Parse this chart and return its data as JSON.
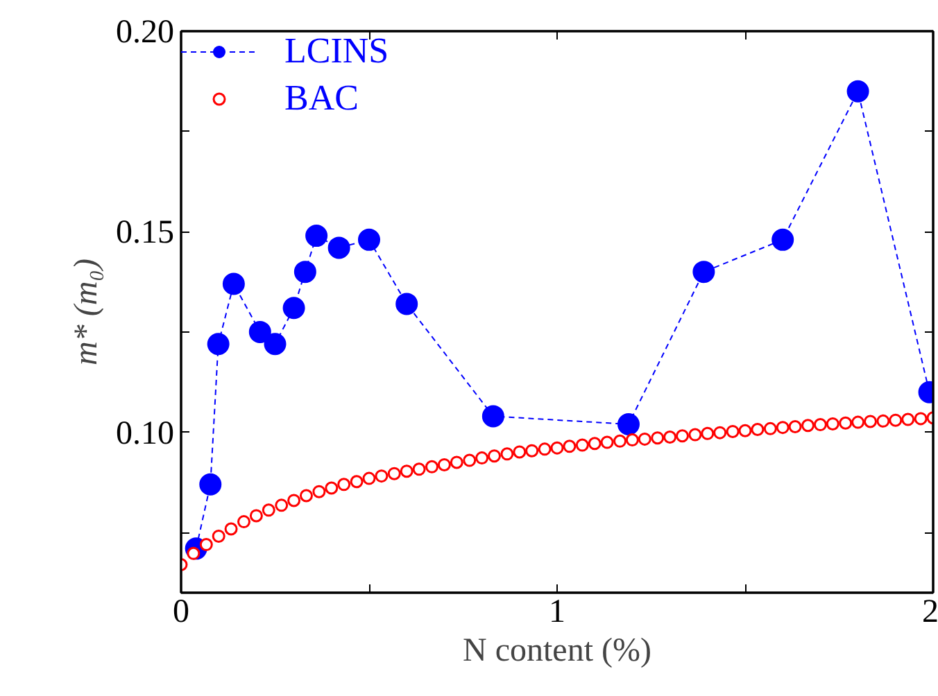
{
  "chart_data": {
    "type": "scatter",
    "xlabel": "N content (%)",
    "ylabel": "m* (m₀)",
    "xlim": [
      0,
      2
    ],
    "ylim": [
      0.06,
      0.2
    ],
    "xticks": [
      0,
      {
        "value": 0.5,
        "label": null
      },
      1,
      {
        "value": 1.5,
        "label": null
      },
      2
    ],
    "yticks": [
      {
        "value": 0.075,
        "label": null
      },
      {
        "value": 0.1,
        "label": "0.10"
      },
      {
        "value": 0.125,
        "label": null
      },
      0.15,
      {
        "value": 0.175,
        "label": null
      },
      {
        "value": 0.2,
        "label": "0.20"
      }
    ],
    "grid": false,
    "legend": "top left",
    "series": [
      {
        "name": "LCINS",
        "color": "#0000ff",
        "type": "line",
        "marker": "circle",
        "line_style": "dashed",
        "x": [
          0.04,
          0.078,
          0.099,
          0.14,
          0.21,
          0.25,
          0.3,
          0.33,
          0.36,
          0.42,
          0.5,
          0.6,
          0.83,
          1.19,
          1.39,
          1.6,
          1.8,
          1.99
        ],
        "values": [
          0.071,
          0.087,
          0.122,
          0.137,
          0.125,
          0.122,
          0.131,
          0.14,
          0.149,
          0.146,
          0.148,
          0.132,
          0.104,
          0.102,
          0.14,
          0.148,
          0.185,
          0.11
        ]
      },
      {
        "name": "BAC",
        "color": "#ff0000",
        "marker": "circle",
        "x": [
          0,
          0.033,
          0.067,
          0.1,
          0.133,
          0.167,
          0.2,
          0.233,
          0.267,
          0.3,
          0.333,
          0.367,
          0.4,
          0.433,
          0.467,
          0.5,
          0.533,
          0.567,
          0.6,
          0.633,
          0.667,
          0.7,
          0.733,
          0.767,
          0.8,
          0.833,
          0.867,
          0.9,
          0.933,
          0.967,
          1.0,
          1.033,
          1.067,
          1.1,
          1.133,
          1.167,
          1.2,
          1.233,
          1.267,
          1.3,
          1.333,
          1.367,
          1.4,
          1.433,
          1.467,
          1.5,
          1.533,
          1.567,
          1.6,
          1.633,
          1.667,
          1.7,
          1.733,
          1.767,
          1.8,
          1.833,
          1.867,
          1.9,
          1.933,
          1.967,
          2.0
        ],
        "values": [
          0.067,
          0.0698,
          0.072,
          0.0741,
          0.0759,
          0.0777,
          0.0792,
          0.0806,
          0.0818,
          0.083,
          0.0842,
          0.0852,
          0.0861,
          0.087,
          0.0877,
          0.0885,
          0.0891,
          0.0897,
          0.0903,
          0.0908,
          0.0914,
          0.0919,
          0.0925,
          0.093,
          0.0936,
          0.0941,
          0.0946,
          0.0951,
          0.0954,
          0.0958,
          0.0961,
          0.0965,
          0.0968,
          0.0972,
          0.0975,
          0.0978,
          0.0981,
          0.0983,
          0.0986,
          0.0988,
          0.0991,
          0.0994,
          0.0997,
          0.0999,
          0.1002,
          0.1004,
          0.1007,
          0.1009,
          0.1012,
          0.1014,
          0.1017,
          0.1019,
          0.1021,
          0.1023,
          0.1025,
          0.1027,
          0.1028,
          0.103,
          0.1032,
          0.1034,
          0.1036
        ]
      }
    ]
  }
}
